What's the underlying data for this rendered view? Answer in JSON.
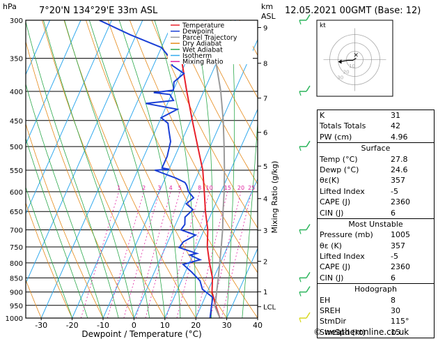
{
  "header": {
    "unit": "hPa",
    "location": "7°20'N 134°29'E 33m ASL",
    "km_label": "km",
    "asl_label": "ASL",
    "datetime": "12.05.2021 00GMT (Base: 12)"
  },
  "legend": [
    {
      "label": "Temperature",
      "color": "#e8202a"
    },
    {
      "label": "Dewpoint",
      "color": "#1a3fd6"
    },
    {
      "label": "Parcel Trajectory",
      "color": "#9a9a9a"
    },
    {
      "label": "Dry Adiabat",
      "color": "#e58a1a"
    },
    {
      "label": "Wet Adiabat",
      "color": "#2aa84a"
    },
    {
      "label": "Isotherm",
      "color": "#33aaee"
    },
    {
      "label": "Mixing Ratio",
      "color": "#e020a0"
    }
  ],
  "chart_data": {
    "type": "line",
    "xlabel": "Dewpoint / Temperature (°C)",
    "ylabel_right": "Mixing Ratio (g/kg)",
    "xlim": [
      -35,
      40
    ],
    "ylim": [
      1000,
      300
    ],
    "y_scale": "log",
    "x_ticks": [
      "-30",
      "-20",
      "-10",
      "0",
      "10",
      "20",
      "30",
      "40"
    ],
    "pressure_ticks": [
      "300",
      "350",
      "400",
      "450",
      "500",
      "550",
      "600",
      "650",
      "700",
      "750",
      "800",
      "850",
      "900",
      "950",
      "1000"
    ],
    "km_ticks": [
      {
        "label": "9",
        "p": 309
      },
      {
        "label": "8",
        "p": 357
      },
      {
        "label": "7",
        "p": 411
      },
      {
        "label": "6",
        "p": 472
      },
      {
        "label": "5",
        "p": 541
      },
      {
        "label": "4",
        "p": 617
      },
      {
        "label": "3",
        "p": 701
      },
      {
        "label": "2",
        "p": 795
      },
      {
        "label": "1",
        "p": 899
      },
      {
        "label": "LCL",
        "p": 955
      }
    ],
    "mixing_ratio_labels": [
      "1",
      "2",
      "3",
      "4",
      "5",
      "8",
      "10",
      "15",
      "20",
      "25"
    ],
    "mixing_ratio_values": [
      1,
      2,
      3,
      4,
      5,
      8,
      10,
      15,
      20,
      25
    ],
    "series": [
      {
        "name": "Temperature",
        "points": [
          [
            27.8,
            1000
          ],
          [
            24.6,
            950
          ],
          [
            21.5,
            900
          ],
          [
            19.6,
            850
          ],
          [
            16.5,
            800
          ],
          [
            13.5,
            750
          ],
          [
            11.2,
            700
          ],
          [
            7.8,
            650
          ],
          [
            4.6,
            600
          ],
          [
            1.0,
            550
          ],
          [
            -4.0,
            500
          ],
          [
            -9.5,
            450
          ],
          [
            -15.5,
            400
          ],
          [
            -22.0,
            350
          ],
          [
            -30.0,
            300
          ]
        ]
      },
      {
        "name": "Dewpoint",
        "points": [
          [
            24.6,
            1000
          ],
          [
            23.3,
            950
          ],
          [
            22.5,
            920
          ],
          [
            18.0,
            890
          ],
          [
            16.0,
            860
          ],
          [
            12.0,
            830
          ],
          [
            8.2,
            805
          ],
          [
            13.0,
            790
          ],
          [
            9.0,
            775
          ],
          [
            11.0,
            770
          ],
          [
            4.5,
            752
          ],
          [
            5.0,
            735
          ],
          [
            8.0,
            715
          ],
          [
            2.5,
            700
          ],
          [
            3.0,
            685
          ],
          [
            2.0,
            665
          ],
          [
            3.5,
            645
          ],
          [
            0.5,
            630
          ],
          [
            2.0,
            615
          ],
          [
            -0.5,
            600
          ],
          [
            -2.0,
            585
          ],
          [
            -3.0,
            578
          ],
          [
            -6.5,
            568
          ],
          [
            -14.5,
            550
          ],
          [
            -10.0,
            548
          ],
          [
            -12.5,
            545
          ],
          [
            -12.5,
            520
          ],
          [
            -13.0,
            505
          ],
          [
            -13.5,
            490
          ],
          [
            -15.5,
            470
          ],
          [
            -17.0,
            455
          ],
          [
            -20.0,
            445
          ],
          [
            -16.0,
            430
          ],
          [
            -27.0,
            420
          ],
          [
            -18.5,
            415
          ],
          [
            -20.5,
            405
          ],
          [
            -26.0,
            402
          ],
          [
            -20.0,
            398
          ],
          [
            -21.0,
            385
          ],
          [
            -19.0,
            372
          ],
          [
            -24.0,
            360
          ],
          [
            -25.0,
            352
          ],
          [
            -30.0,
            335
          ],
          [
            -42.0,
            318
          ],
          [
            -54.0,
            300
          ]
        ]
      },
      {
        "name": "Parcel Trajectory",
        "points": [
          [
            27.8,
            1000
          ],
          [
            24.6,
            955
          ],
          [
            23.0,
            900
          ],
          [
            21.5,
            850
          ],
          [
            19.8,
            800
          ],
          [
            18.0,
            750
          ],
          [
            16.0,
            700
          ],
          [
            13.5,
            650
          ],
          [
            11.0,
            600
          ],
          [
            8.0,
            550
          ],
          [
            4.5,
            500
          ],
          [
            0.5,
            450
          ],
          [
            -4.5,
            400
          ],
          [
            -11.0,
            350
          ],
          [
            -19.5,
            300
          ]
        ]
      }
    ],
    "hodograph": {
      "label": "kt",
      "ring_labels": [
        "10",
        "20",
        "30"
      ]
    }
  },
  "indices": {
    "rows": [
      {
        "label": "K",
        "value": "31"
      },
      {
        "label": "Totals Totals",
        "value": "42"
      },
      {
        "label": "PW (cm)",
        "value": "4.96"
      }
    ],
    "surface": {
      "title": "Surface",
      "rows": [
        {
          "label": "Temp (°C)",
          "value": "27.8"
        },
        {
          "label": "Dewp (°C)",
          "value": "24.6"
        },
        {
          "label": "θε(K)",
          "value": "357"
        },
        {
          "label": "Lifted Index",
          "value": "-5"
        },
        {
          "label": "CAPE (J)",
          "value": "2360"
        },
        {
          "label": "CIN (J)",
          "value": "6"
        }
      ]
    },
    "most_unstable": {
      "title": "Most Unstable",
      "rows": [
        {
          "label": "Pressure (mb)",
          "value": "1005"
        },
        {
          "label": "θε (K)",
          "value": "357"
        },
        {
          "label": "Lifted Index",
          "value": "-5"
        },
        {
          "label": "CAPE (J)",
          "value": "2360"
        },
        {
          "label": "CIN (J)",
          "value": "6"
        }
      ]
    },
    "hodograph_table": {
      "title": "Hodograph",
      "rows": [
        {
          "label": "EH",
          "value": "8"
        },
        {
          "label": "SREH",
          "value": "30"
        },
        {
          "label": "StmDir",
          "value": "115°"
        },
        {
          "label": "StmSpd (kt)",
          "value": "15"
        }
      ]
    }
  },
  "footer": "© weatheronline.co.uk",
  "colors": {
    "temperature": "#e8202a",
    "dewpoint": "#1a3fd6",
    "parcel": "#9a9a9a",
    "dry_adiabat": "#e58a1a",
    "wet_adiabat": "#2aa84a",
    "isotherm": "#33aaee",
    "mixing_ratio": "#e020a0",
    "wind_barb": "#2ab45a"
  }
}
